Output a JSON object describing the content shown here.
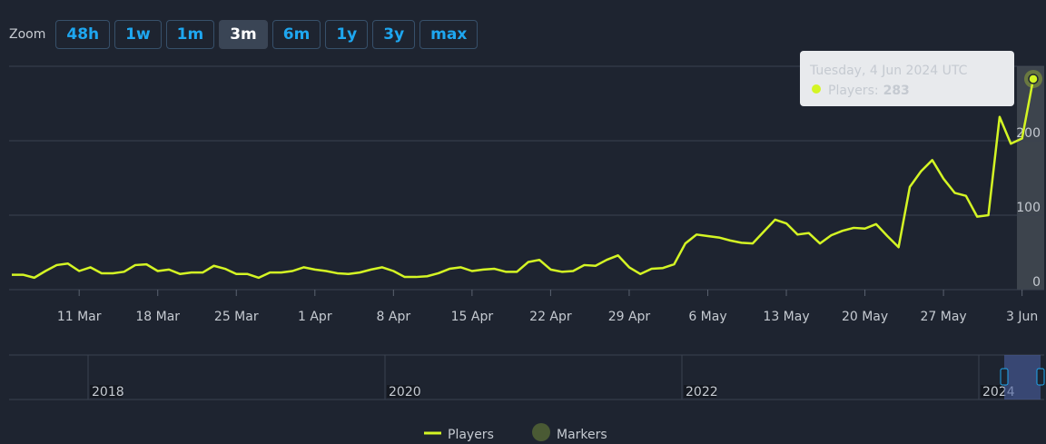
{
  "zoom": {
    "label": "Zoom",
    "buttons": [
      "48h",
      "1w",
      "1m",
      "3m",
      "6m",
      "1y",
      "3y",
      "max"
    ],
    "selected": "3m"
  },
  "chart_data": {
    "type": "line",
    "x": [
      "5 Mar",
      "6 Mar",
      "7 Mar",
      "8 Mar",
      "9 Mar",
      "10 Mar",
      "11 Mar",
      "12 Mar",
      "13 Mar",
      "14 Mar",
      "15 Mar",
      "16 Mar",
      "17 Mar",
      "18 Mar",
      "19 Mar",
      "20 Mar",
      "21 Mar",
      "22 Mar",
      "23 Mar",
      "24 Mar",
      "25 Mar",
      "26 Mar",
      "27 Mar",
      "28 Mar",
      "29 Mar",
      "30 Mar",
      "31 Mar",
      "1 Apr",
      "2 Apr",
      "3 Apr",
      "4 Apr",
      "5 Apr",
      "6 Apr",
      "7 Apr",
      "8 Apr",
      "9 Apr",
      "10 Apr",
      "11 Apr",
      "12 Apr",
      "13 Apr",
      "14 Apr",
      "15 Apr",
      "16 Apr",
      "17 Apr",
      "18 Apr",
      "19 Apr",
      "20 Apr",
      "21 Apr",
      "22 Apr",
      "23 Apr",
      "24 Apr",
      "25 Apr",
      "26 Apr",
      "27 Apr",
      "28 Apr",
      "29 Apr",
      "30 Apr",
      "1 May",
      "2 May",
      "3 May",
      "4 May",
      "5 May",
      "6 May",
      "7 May",
      "8 May",
      "9 May",
      "10 May",
      "11 May",
      "12 May",
      "13 May",
      "14 May",
      "15 May",
      "16 May",
      "17 May",
      "18 May",
      "19 May",
      "20 May",
      "21 May",
      "22 May",
      "23 May",
      "24 May",
      "25 May",
      "26 May",
      "27 May",
      "28 May",
      "29 May",
      "30 May",
      "31 May",
      "1 Jun",
      "2 Jun",
      "3 Jun",
      "4 Jun"
    ],
    "series": [
      {
        "name": "Players",
        "color": "#d4f524",
        "values": [
          20,
          20,
          16,
          25,
          33,
          35,
          25,
          30,
          22,
          22,
          24,
          33,
          34,
          25,
          27,
          21,
          23,
          23,
          32,
          28,
          21,
          21,
          16,
          23,
          23,
          25,
          30,
          27,
          25,
          22,
          21,
          23,
          27,
          30,
          25,
          17,
          17,
          18,
          22,
          28,
          30,
          25,
          27,
          28,
          24,
          24,
          37,
          40,
          27,
          24,
          25,
          33,
          32,
          40,
          46,
          30,
          21,
          28,
          29,
          34,
          62,
          74,
          72,
          70,
          66,
          63,
          62,
          78,
          94,
          89,
          74,
          76,
          62,
          73,
          79,
          83,
          82,
          88,
          72,
          57,
          138,
          159,
          174,
          149,
          130,
          126,
          98,
          100,
          232,
          196,
          203,
          283
        ]
      }
    ],
    "markers": {
      "name": "Markers",
      "color": "#4a5a34"
    },
    "xticks": [
      "11 Mar",
      "18 Mar",
      "25 Mar",
      "1 Apr",
      "8 Apr",
      "15 Apr",
      "22 Apr",
      "29 Apr",
      "6 May",
      "13 May",
      "20 May",
      "27 May",
      "3 Jun"
    ],
    "ylim": [
      0,
      300
    ],
    "yticks": [
      0,
      100,
      200
    ],
    "grid": true,
    "tooltip": {
      "date": "Tuesday, 4 Jun 2024 UTC",
      "label": "Players:"
    },
    "navigator": {
      "years": [
        "2018",
        "2020",
        "2022",
        "2024"
      ]
    }
  }
}
